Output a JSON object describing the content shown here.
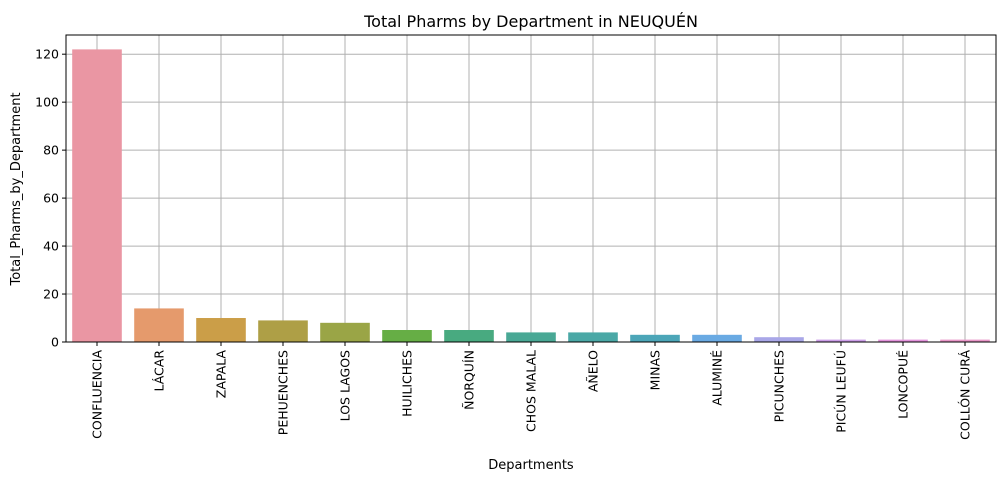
{
  "chart_data": {
    "type": "bar",
    "title": "Total Pharms by Department in NEUQUÉN",
    "xlabel": "Departments",
    "ylabel": "Total_Pharms_by_Department",
    "categories": [
      "CONFLUENCIA",
      "LÁCAR",
      "ZAPALA",
      "PEHUENCHES",
      "LOS LAGOS",
      "HUILICHES",
      "ÑORQUÍN",
      "CHOS MALAL",
      "AÑELO",
      "MINAS",
      "ALUMINÉ",
      "PICUNCHES",
      "PICÚN LEUFÚ",
      "LONCOPUÉ",
      "COLLÓN CURÁ"
    ],
    "values": [
      122,
      14,
      10,
      9,
      8,
      5,
      5,
      4,
      4,
      3,
      3,
      2,
      1,
      1,
      1
    ],
    "colors": [
      "#ea96a3",
      "#e59a6c",
      "#cb9e48",
      "#ae9f46",
      "#9aa546",
      "#66ae45",
      "#48aa80",
      "#49a895",
      "#4aa8a6",
      "#4ca6b8",
      "#6aaae3",
      "#a9a7e8",
      "#cc9ee8",
      "#e393dc",
      "#e996c8"
    ],
    "ylim": [
      0,
      128
    ],
    "yticks": [
      0,
      20,
      40,
      60,
      80,
      100,
      120
    ],
    "grid": true
  }
}
